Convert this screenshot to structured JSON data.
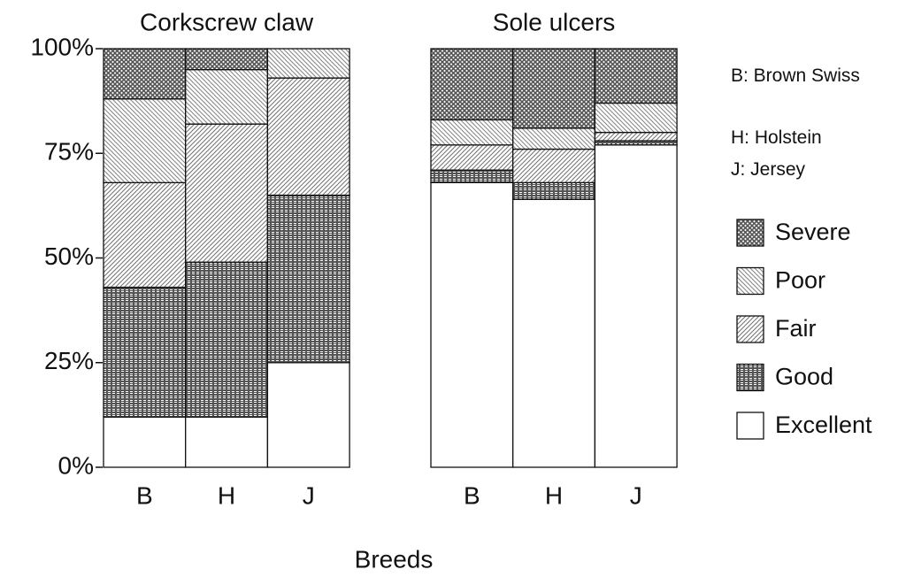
{
  "chart_data": [
    {
      "type": "bar",
      "stacked": true,
      "title": "Corkscrew claw",
      "categories": [
        "B",
        "H",
        "J"
      ],
      "series": [
        {
          "name": "Excellent",
          "color": "#ffffff",
          "pattern": "none",
          "values": [
            12,
            12,
            25
          ]
        },
        {
          "name": "Good",
          "color": "#555555",
          "pattern": "grid",
          "values": [
            31,
            37,
            40
          ]
        },
        {
          "name": "Fair",
          "color": "#777777",
          "pattern": "diagonal-right",
          "values": [
            25,
            33,
            28
          ]
        },
        {
          "name": "Poor",
          "color": "#888888",
          "pattern": "diagonal-left",
          "values": [
            20,
            13,
            7
          ]
        },
        {
          "name": "Severe",
          "color": "#555555",
          "pattern": "crosshatch",
          "values": [
            12,
            5,
            0
          ]
        }
      ],
      "ylim": [
        0,
        100
      ],
      "yticks": [
        {
          "value": 0,
          "label": "0%"
        },
        {
          "value": 25,
          "label": "25%"
        },
        {
          "value": 50,
          "label": "50%"
        },
        {
          "value": 75,
          "label": "75%"
        },
        {
          "value": 100,
          "label": "100%"
        }
      ]
    },
    {
      "type": "bar",
      "stacked": true,
      "title": "Sole ulcers",
      "categories": [
        "B",
        "H",
        "J"
      ],
      "series": [
        {
          "name": "Excellent",
          "color": "#ffffff",
          "pattern": "none",
          "values": [
            68,
            64,
            77
          ]
        },
        {
          "name": "Good",
          "color": "#555555",
          "pattern": "grid",
          "values": [
            3,
            4,
            1
          ]
        },
        {
          "name": "Fair",
          "color": "#777777",
          "pattern": "diagonal-right",
          "values": [
            6,
            8,
            2
          ]
        },
        {
          "name": "Poor",
          "color": "#888888",
          "pattern": "diagonal-left",
          "values": [
            6,
            5,
            7
          ]
        },
        {
          "name": "Severe",
          "color": "#555555",
          "pattern": "crosshatch",
          "values": [
            17,
            19,
            13
          ]
        }
      ],
      "ylim": [
        0,
        100
      ]
    }
  ],
  "x_label": "Breeds",
  "key": [
    "B: Brown Swiss",
    "H: Holstein",
    "J: Jersey"
  ]
}
